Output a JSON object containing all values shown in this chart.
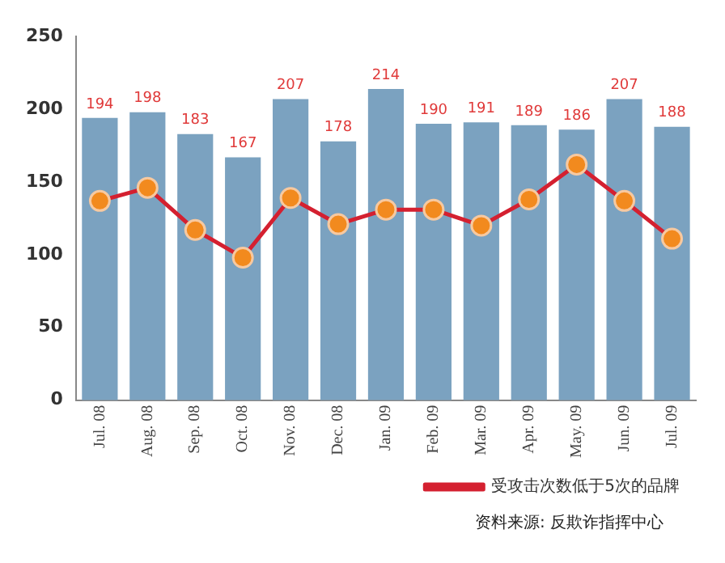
{
  "chart_data": {
    "type": "bar",
    "categories": [
      "Jul. 08",
      "Aug. 08",
      "Sep. 08",
      "Oct. 08",
      "Nov. 08",
      "Dec. 08",
      "Jan. 09",
      "Feb. 09",
      "Mar. 09",
      "Apr. 09",
      "May. 09",
      "Jun. 09",
      "Jul. 09"
    ],
    "series": [
      {
        "color": "#7ba2c0",
        "values": [
          194,
          198,
          183,
          167,
          207,
          178,
          214,
          190,
          191,
          189,
          186,
          207,
          188
        ],
        "value_labels": [
          "194",
          "198",
          "183",
          "167",
          "207",
          "178",
          "214",
          "190",
          "191",
          "189",
          "186",
          "207",
          "188"
        ]
      },
      {
        "type": "line",
        "name": "受攻击次数低于5次的品牌",
        "color": "#d42030",
        "values": [
          137,
          146,
          117,
          98,
          139,
          121,
          131,
          131,
          120,
          138,
          162,
          137,
          111
        ]
      }
    ],
    "ylim": [
      0,
      250
    ],
    "yticks": [
      0,
      50,
      100,
      150,
      200,
      250
    ],
    "grid": false,
    "legend": "bottom right",
    "marker": "circle",
    "line_style": "solid",
    "annotations": [
      "资料来源: 反欺诈指挥中心"
    ]
  }
}
